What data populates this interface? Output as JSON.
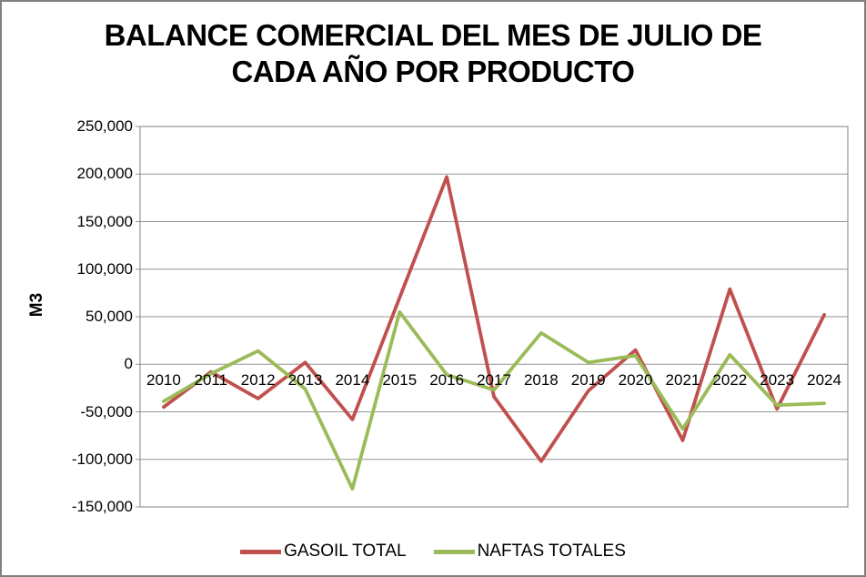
{
  "title": {
    "line1": "BALANCE COMERCIAL DEL MES DE JULIO DE",
    "line2": "CADA AÑO POR PRODUCTO"
  },
  "y_axis_title": "M3",
  "colors": {
    "grid": "#969696",
    "plot_border": "#808080",
    "page_border": "#808080",
    "text": "#000000",
    "gasoil": "#C0504D",
    "naftas": "#9BBB59"
  },
  "chart_data": {
    "type": "line",
    "title": "BALANCE COMERCIAL DEL MES DE JULIO DE CADA AÑO POR PRODUCTO",
    "ylabel": "M3",
    "ylim": [
      -150000,
      250000
    ],
    "ytick_step": 50000,
    "ytick_labels": [
      "250,000",
      "200,000",
      "150,000",
      "100,000",
      "50,000",
      "0",
      "-50,000",
      "-100,000",
      "-150,000"
    ],
    "grid": true,
    "legend_position": "bottom",
    "categories": [
      2010,
      2011,
      2012,
      2013,
      2014,
      2015,
      2016,
      2017,
      2018,
      2019,
      2020,
      2021,
      2022,
      2023,
      2024
    ],
    "series": [
      {
        "name": "GASOIL TOTAL",
        "color": "#C0504D",
        "values": [
          -45000,
          -8000,
          -36000,
          2000,
          -58000,
          70000,
          197000,
          -34000,
          -102000,
          -28000,
          15000,
          -80000,
          79000,
          -47000,
          52000
        ]
      },
      {
        "name": "NAFTAS TOTALES",
        "color": "#9BBB59",
        "values": [
          -39000,
          -10000,
          14000,
          -26000,
          -131000,
          55000,
          -11000,
          -27000,
          33000,
          2000,
          9000,
          -68000,
          10000,
          -43000,
          -41000
        ]
      }
    ]
  }
}
